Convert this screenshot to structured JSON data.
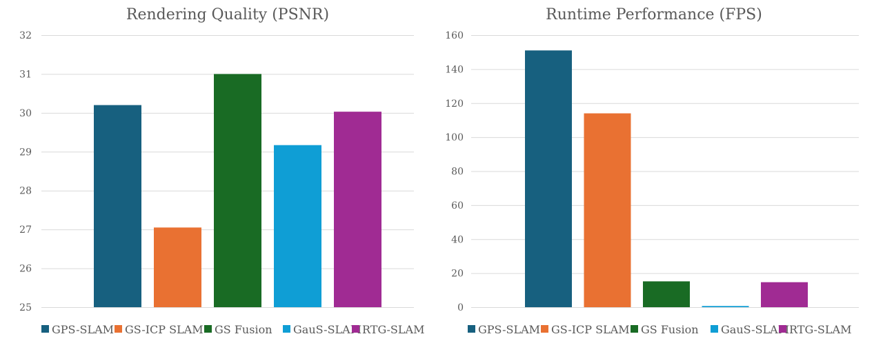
{
  "chart_data": [
    {
      "type": "bar",
      "title": "Rendering Quality (PSNR)",
      "xlabel": "",
      "ylabel": "",
      "ylim": [
        25,
        32
      ],
      "yticks": [
        25,
        26,
        27,
        28,
        29,
        30,
        31,
        32
      ],
      "grid": true,
      "legend": "bottom",
      "series": [
        {
          "name": "GPS-SLAM",
          "value": 30.2,
          "color": "#17607f"
        },
        {
          "name": "GS-ICP SLAM",
          "value": 27.05,
          "color": "#e97132"
        },
        {
          "name": "GS Fusion",
          "value": 31.0,
          "color": "#196b24"
        },
        {
          "name": "GauS-SLAM",
          "value": 29.17,
          "color": "#0f9ed5"
        },
        {
          "name": "RTG-SLAM",
          "value": 30.03,
          "color": "#a02b93"
        }
      ]
    },
    {
      "type": "bar",
      "title": "Runtime Performance (FPS)",
      "xlabel": "",
      "ylabel": "",
      "ylim": [
        0,
        160
      ],
      "yticks": [
        0,
        20,
        40,
        60,
        80,
        100,
        120,
        140,
        160
      ],
      "grid": true,
      "legend": "bottom",
      "series": [
        {
          "name": "GPS-SLAM",
          "value": 151,
          "color": "#17607f"
        },
        {
          "name": "GS-ICP SLAM",
          "value": 114,
          "color": "#e97132"
        },
        {
          "name": "GS Fusion",
          "value": 15.2,
          "color": "#196b24"
        },
        {
          "name": "GauS-SLAM",
          "value": 0.7,
          "color": "#0f9ed5"
        },
        {
          "name": "RTG-SLAM",
          "value": 14.7,
          "color": "#a02b93"
        }
      ]
    }
  ]
}
